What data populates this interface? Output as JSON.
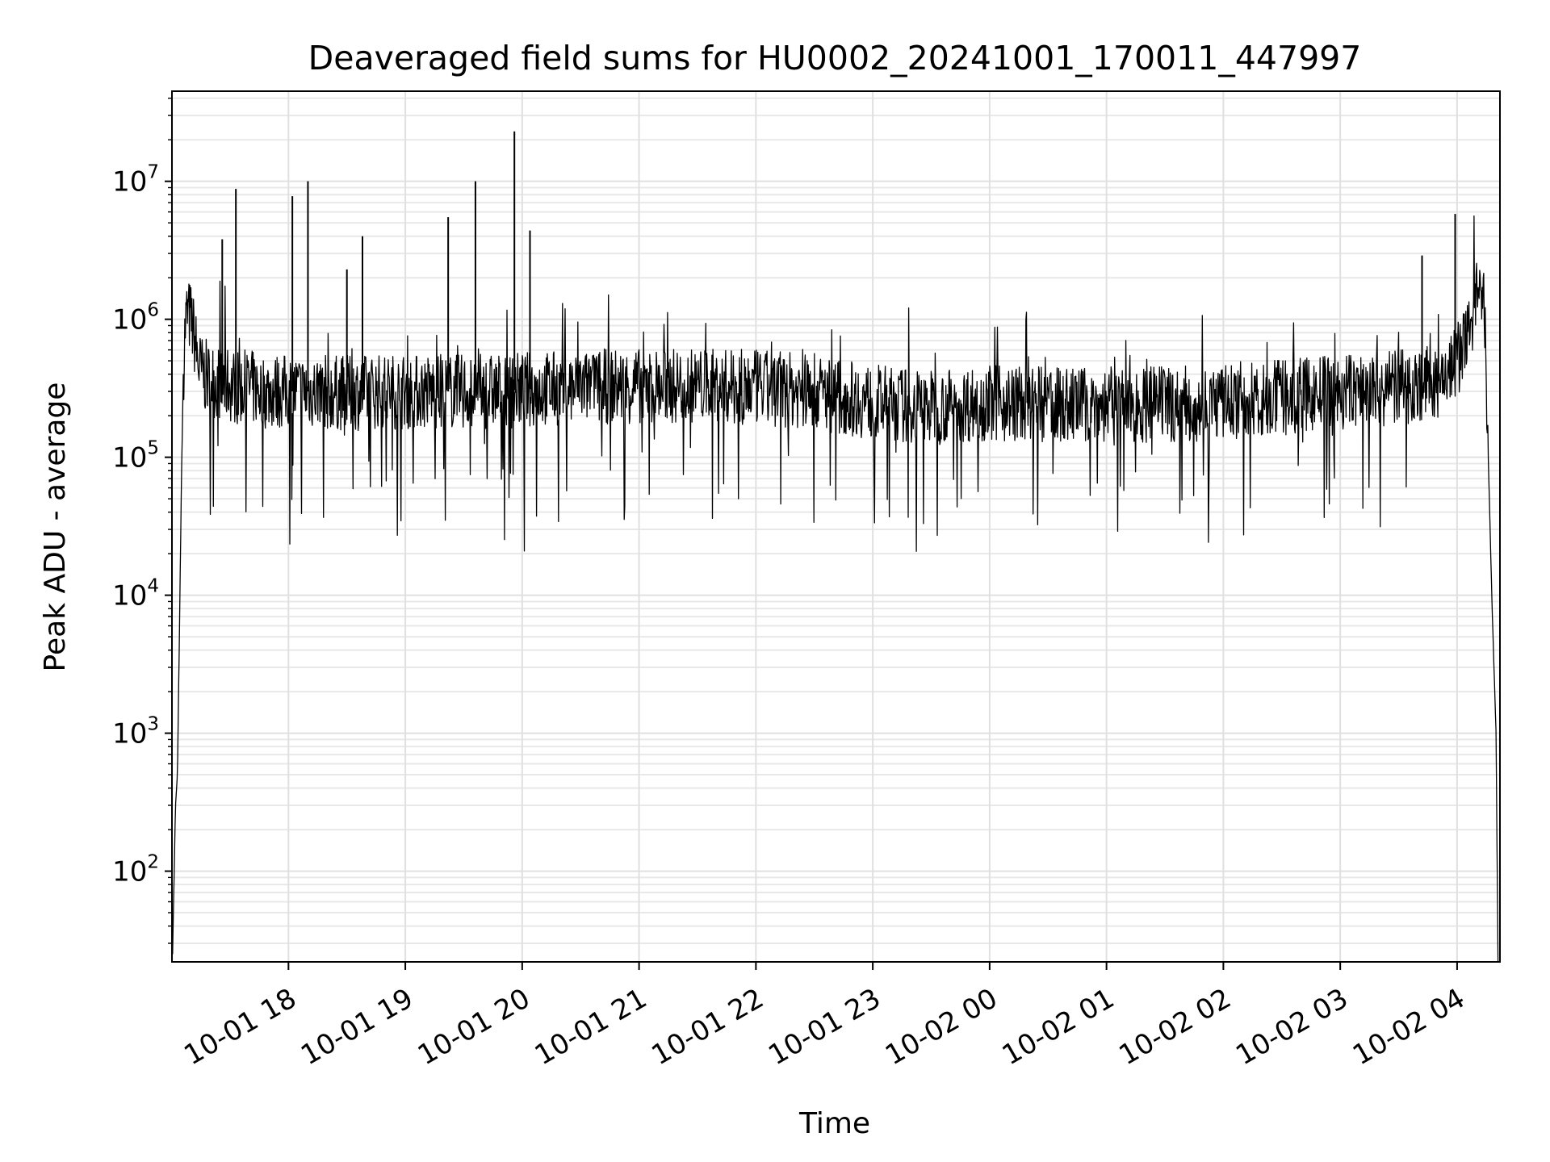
{
  "chart_data": {
    "type": "line",
    "title": "Deaveraged field sums for HU0002_20241001_170011_447997",
    "xlabel": "Time",
    "ylabel": "Peak ADU - average",
    "yscale": "log",
    "ylim": [
      22,
      45000000
    ],
    "xlim": [
      "2024-10-01 17:00:11",
      "2024-10-02 04:22:00"
    ],
    "grid": true,
    "x_tick_labels": [
      "10-01 18",
      "10-01 19",
      "10-01 20",
      "10-01 21",
      "10-01 22",
      "10-01 23",
      "10-02 00",
      "10-02 01",
      "10-02 02",
      "10-02 03",
      "10-02 04"
    ],
    "x_tick_values": [
      "2024-10-01 18:00",
      "2024-10-01 19:00",
      "2024-10-01 20:00",
      "2024-10-01 21:00",
      "2024-10-01 22:00",
      "2024-10-01 23:00",
      "2024-10-02 00:00",
      "2024-10-02 01:00",
      "2024-10-02 02:00",
      "2024-10-02 03:00",
      "2024-10-02 04:00"
    ],
    "y_ticks": [
      {
        "value": 100,
        "base": "10",
        "exp": "2"
      },
      {
        "value": 1000,
        "base": "10",
        "exp": "3"
      },
      {
        "value": 10000,
        "base": "10",
        "exp": "4"
      },
      {
        "value": 100000,
        "base": "10",
        "exp": "5"
      },
      {
        "value": 1000000,
        "base": "10",
        "exp": "6"
      },
      {
        "value": 10000000,
        "base": "10",
        "exp": "7"
      }
    ],
    "series": [
      {
        "color": "#000000",
        "x": [
          "2024-10-01 17:00:30",
          "2024-10-01 17:02:00",
          "2024-10-01 17:03:00",
          "2024-10-01 17:04:00",
          "2024-10-01 17:05:00",
          "2024-10-01 17:06:00",
          "2024-10-01 17:07:00",
          "2024-10-01 17:08:00",
          "2024-10-01 17:10:00",
          "2024-10-01 17:12:00",
          "2024-10-01 17:14:00",
          "2024-10-01 17:16:00",
          "2024-10-01 17:18:00",
          "2024-10-01 17:20:00",
          "2024-10-01 17:24:00",
          "2024-10-01 17:28:00",
          "2024-10-01 17:32:00",
          "2024-10-01 17:36:00",
          "2024-10-01 17:40:00",
          "2024-10-01 17:44:00",
          "2024-10-01 17:48:00",
          "2024-10-01 17:52:00",
          "2024-10-01 17:56:00",
          "2024-10-01 18:00:00",
          "2024-10-01 18:15:00",
          "2024-10-01 18:30:00",
          "2024-10-01 18:45:00",
          "2024-10-01 19:00:00",
          "2024-10-01 19:15:00",
          "2024-10-01 19:30:00",
          "2024-10-01 19:45:00",
          "2024-10-01 20:00:00",
          "2024-10-01 20:30:00",
          "2024-10-01 21:00:00",
          "2024-10-01 21:30:00",
          "2024-10-01 22:00:00",
          "2024-10-01 22:30:00",
          "2024-10-01 23:00:00",
          "2024-10-01 23:30:00",
          "2024-10-02 00:00:00",
          "2024-10-02 00:30:00",
          "2024-10-02 01:00:00",
          "2024-10-02 01:30:00",
          "2024-10-02 02:00:00",
          "2024-10-02 02:30:00",
          "2024-10-02 03:00:00",
          "2024-10-02 03:30:00",
          "2024-10-02 03:50:00",
          "2024-10-02 04:00:00",
          "2024-10-02 04:05:00",
          "2024-10-02 04:10:00",
          "2024-10-02 04:14:00",
          "2024-10-02 04:16:00",
          "2024-10-02 04:18:00",
          "2024-10-02 04:20:00",
          "2024-10-02 04:21:00"
        ],
        "y": [
          25,
          300,
          500,
          5000,
          60000,
          400000,
          900000,
          1100000,
          1000000,
          700000,
          450000,
          400000,
          380000,
          360000,
          350000,
          340000,
          330000,
          320000,
          320000,
          310000,
          300000,
          300000,
          300000,
          300000,
          300000,
          290000,
          300000,
          300000,
          300000,
          300000,
          300000,
          310000,
          320000,
          330000,
          330000,
          320000,
          300000,
          250000,
          230000,
          250000,
          240000,
          240000,
          240000,
          250000,
          270000,
          300000,
          320000,
          350000,
          500000,
          700000,
          1500000,
          1200000,
          100000,
          8000,
          1000,
          22
        ],
        "spikes": [
          {
            "x": "2024-10-01 17:26:00",
            "y": 3800000
          },
          {
            "x": "2024-10-01 17:33:00",
            "y": 8800000
          },
          {
            "x": "2024-10-01 18:02:00",
            "y": 7800000
          },
          {
            "x": "2024-10-01 18:10:00",
            "y": 10000000
          },
          {
            "x": "2024-10-01 18:30:00",
            "y": 2300000
          },
          {
            "x": "2024-10-01 18:38:00",
            "y": 4000000
          },
          {
            "x": "2024-10-01 19:22:00",
            "y": 5500000
          },
          {
            "x": "2024-10-01 19:36:00",
            "y": 10000000
          },
          {
            "x": "2024-10-01 19:56:00",
            "y": 23000000
          },
          {
            "x": "2024-10-01 20:04:00",
            "y": 4400000
          },
          {
            "x": "2024-10-02 03:42:00",
            "y": 2900000
          },
          {
            "x": "2024-10-02 03:59:00",
            "y": 5800000
          }
        ]
      }
    ]
  }
}
